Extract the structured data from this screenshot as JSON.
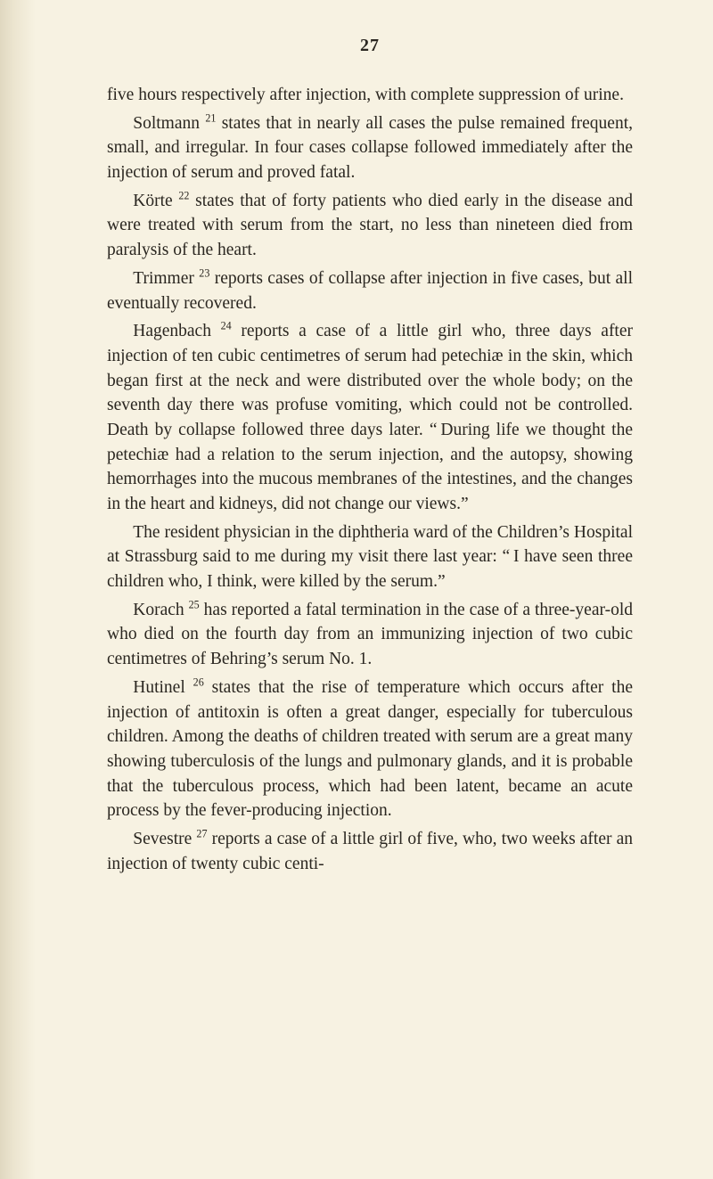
{
  "page_number": "27",
  "paragraphs": [
    {
      "cont": true,
      "html": "five hours respectively after injection, with complete suppression of urine."
    },
    {
      "html": "Soltmann <span class='sup'>21</span> states that in nearly all cases the pulse remained frequent, small, and irregular. In four cases collapse followed immediately after the injection of serum and proved fatal."
    },
    {
      "html": "Körte <span class='sup'>22</span> states that of forty patients who died early in the disease and were treated with serum from the start, no less than nineteen died from paralysis of the heart."
    },
    {
      "html": "Trimmer <span class='sup'>23</span> reports cases of collapse after injection in five cases, but all eventually recovered."
    },
    {
      "html": "Hagenbach <span class='sup'>24</span> reports a case of a little girl who, three days after injection of ten cubic centimetres of serum had petechiæ in the skin, which began first at the neck and were distributed over the whole body; on the seventh day there was profuse vomiting, which could not be controlled. Death by collapse followed three days later. &ldquo;&#8201;During life we thought the petechiæ had a relation to the serum injection, and the autopsy, showing hemorrhages into the mucous membranes of the intestines, and the changes in the heart and kidneys, did not change our views.&rdquo;"
    },
    {
      "html": "The resident physician in the diphtheria ward of the Children&rsquo;s Hospital at Strassburg said to me during my visit there last year: &ldquo;&#8201;I have seen three children who, I think, were killed by the serum.&rdquo;"
    },
    {
      "html": "Korach <span class='sup'>25</span> has reported a fatal termination in the case of a three-year-old who died on the fourth day from an immunizing injection of two cubic centimetres of Behring&rsquo;s serum No. 1."
    },
    {
      "html": "Hutinel <span class='sup'>26</span> states that the rise of temperature which occurs after the injection of antitoxin is often a great danger, especially for tuberculous children. Among the deaths of children treated with serum are a great many showing tuberculosis of the lungs and pulmonary glands, and it is probable that the tuberculous process, which had been latent, became an acute process by the fever-producing injection."
    },
    {
      "html": "Sevestre <span class='sup'>27</span> reports a case of a little girl of five, who, two weeks after an injection of twenty cubic centi-"
    }
  ]
}
